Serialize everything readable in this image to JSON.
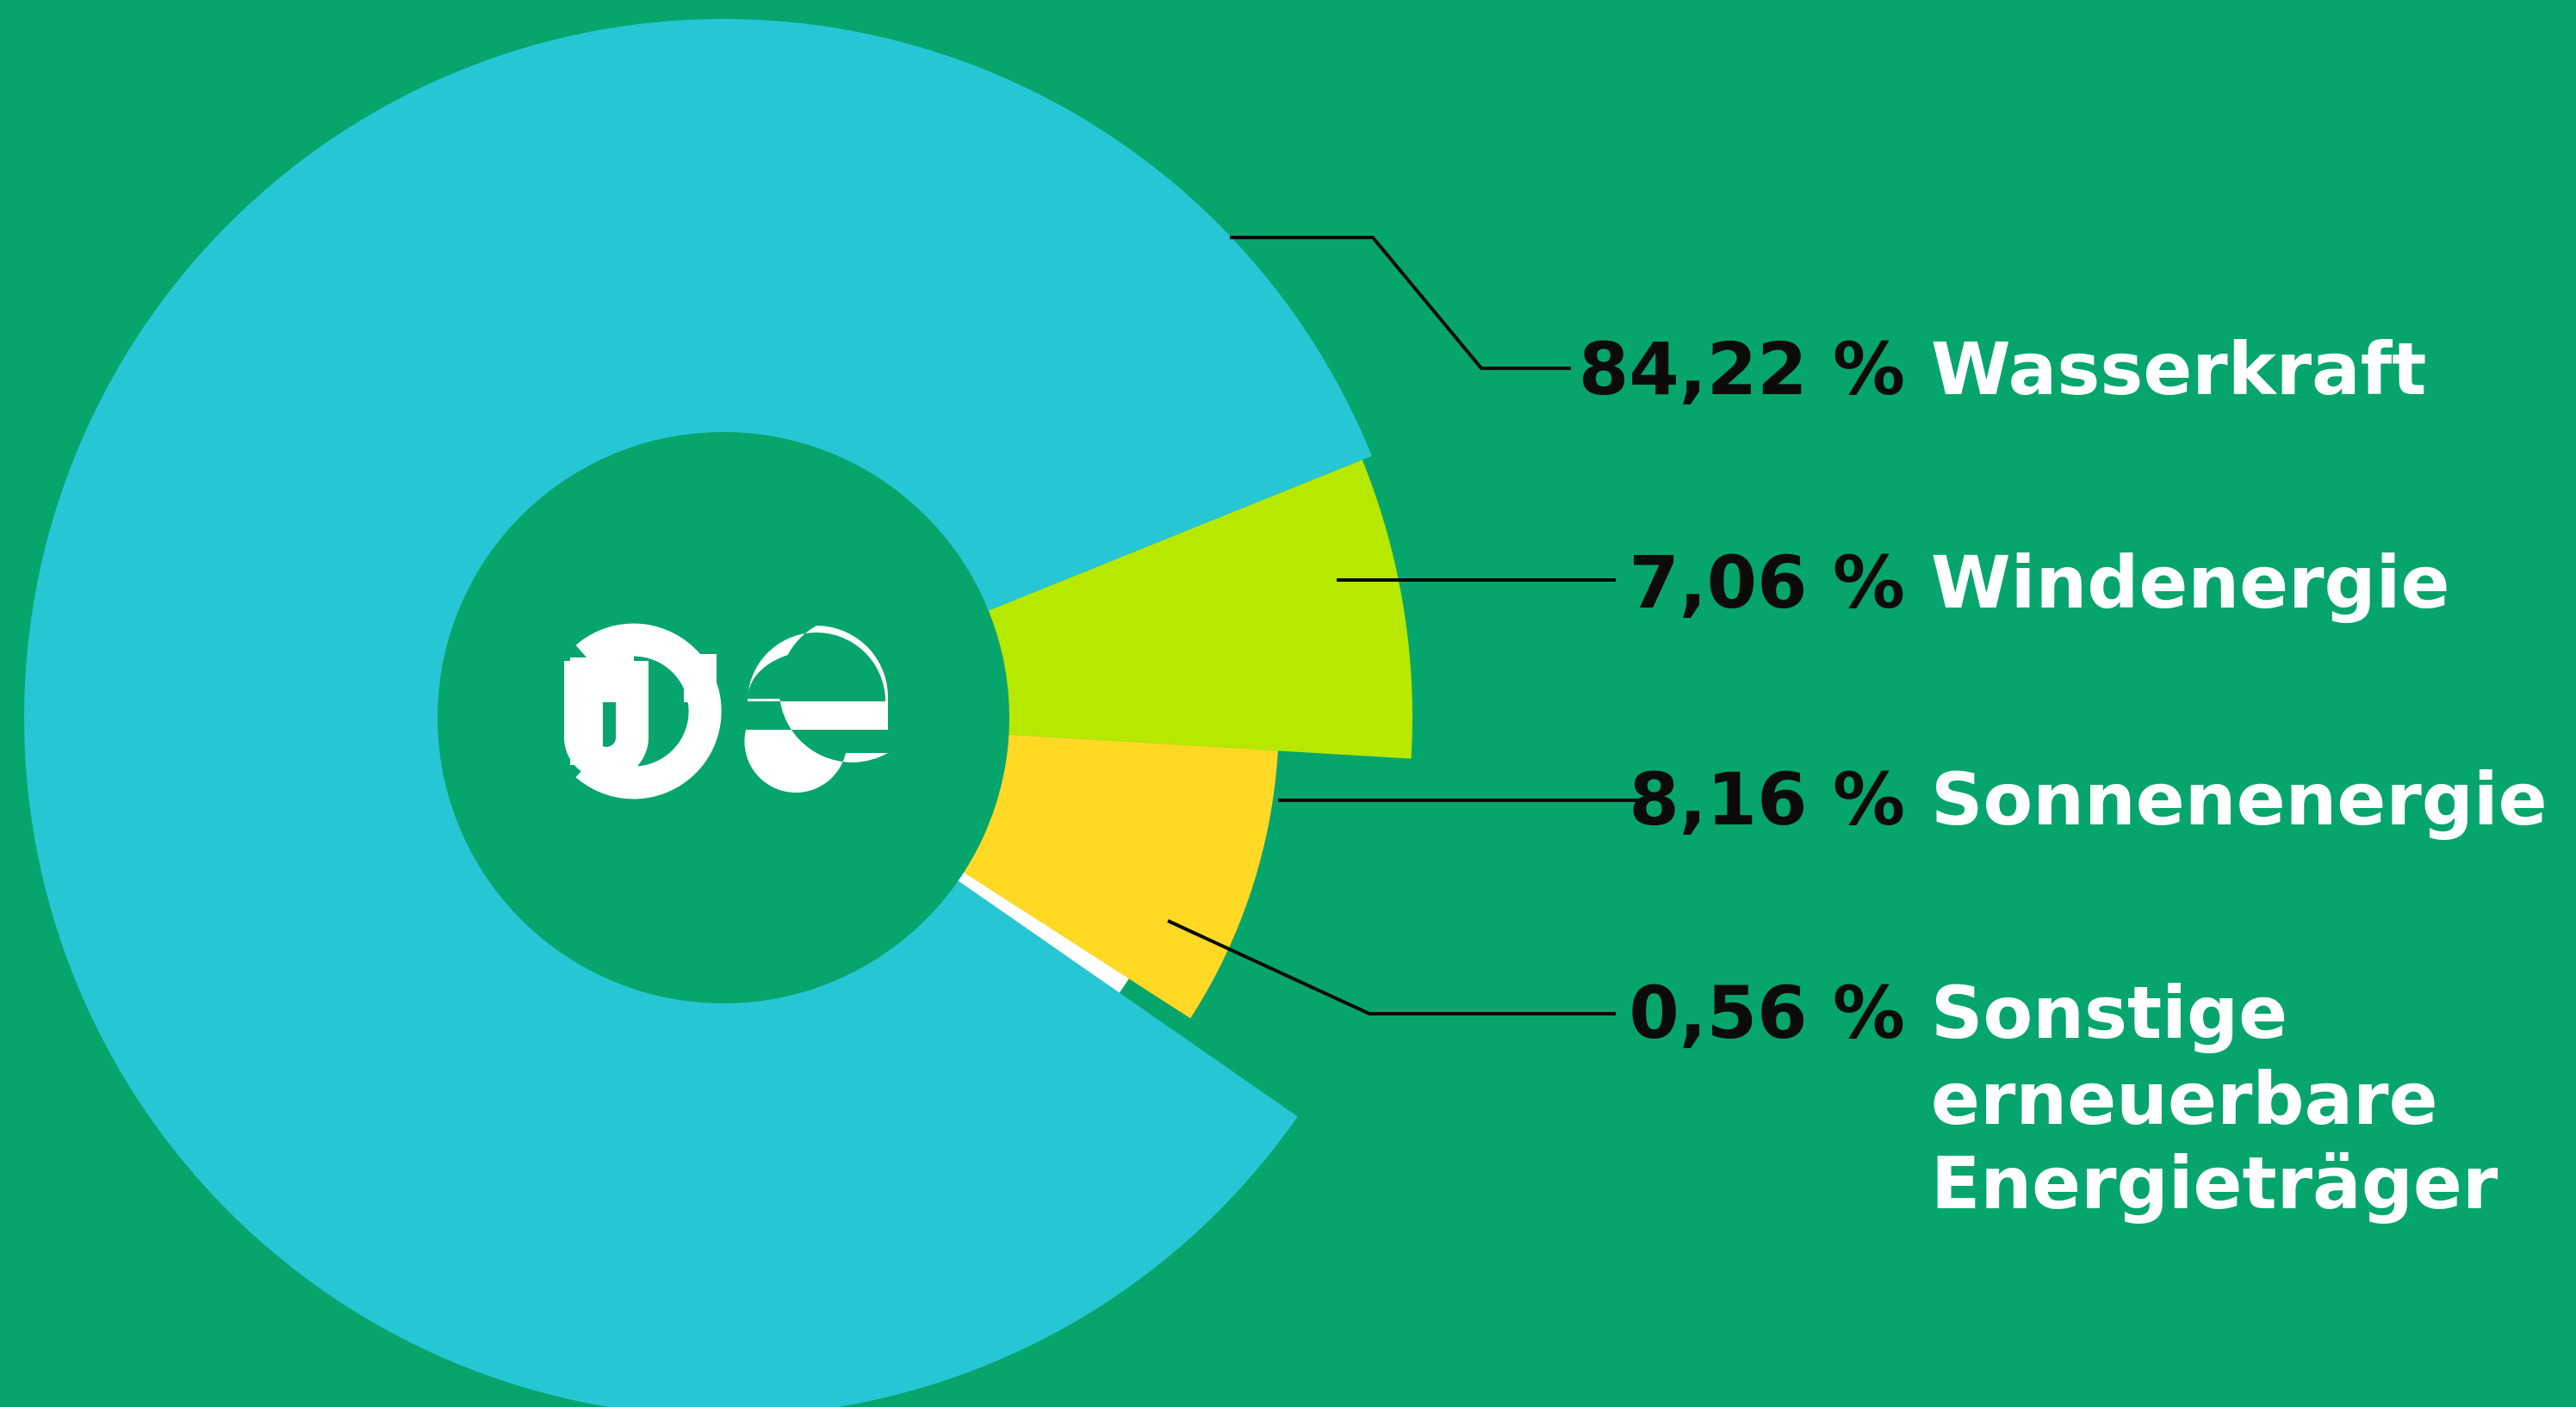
{
  "colors": {
    "background": "#06a56c",
    "hole": "#06a56c",
    "leader": "#0b0b0b",
    "logo": "#ffffff"
  },
  "logo": {
    "icon": "oe-plug-logo-icon"
  },
  "chart_data": {
    "type": "pie",
    "style": "donut-exploded",
    "legend_placement": "right",
    "slices": [
      {
        "label": "Wasserkraft",
        "value": 84.22,
        "value_text": "84,22 %",
        "label_lines": [
          "Wasserkraft"
        ],
        "color": "#26c6d4"
      },
      {
        "label": "Windenergie",
        "value": 7.06,
        "value_text": "7,06 %",
        "label_lines": [
          "Windenergie"
        ],
        "color": "#b6e800"
      },
      {
        "label": "Sonnenenergie",
        "value": 8.16,
        "value_text": "8,16 %",
        "label_lines": [
          "Sonnenenergie"
        ],
        "color": "#ffd923"
      },
      {
        "label": "Sonstige erneuerbare Energieträger",
        "value": 0.56,
        "value_text": "0,56 %",
        "label_lines": [
          "Sonstige",
          "erneuerbare",
          "Energieträger"
        ],
        "color": "#ffffff"
      }
    ]
  }
}
